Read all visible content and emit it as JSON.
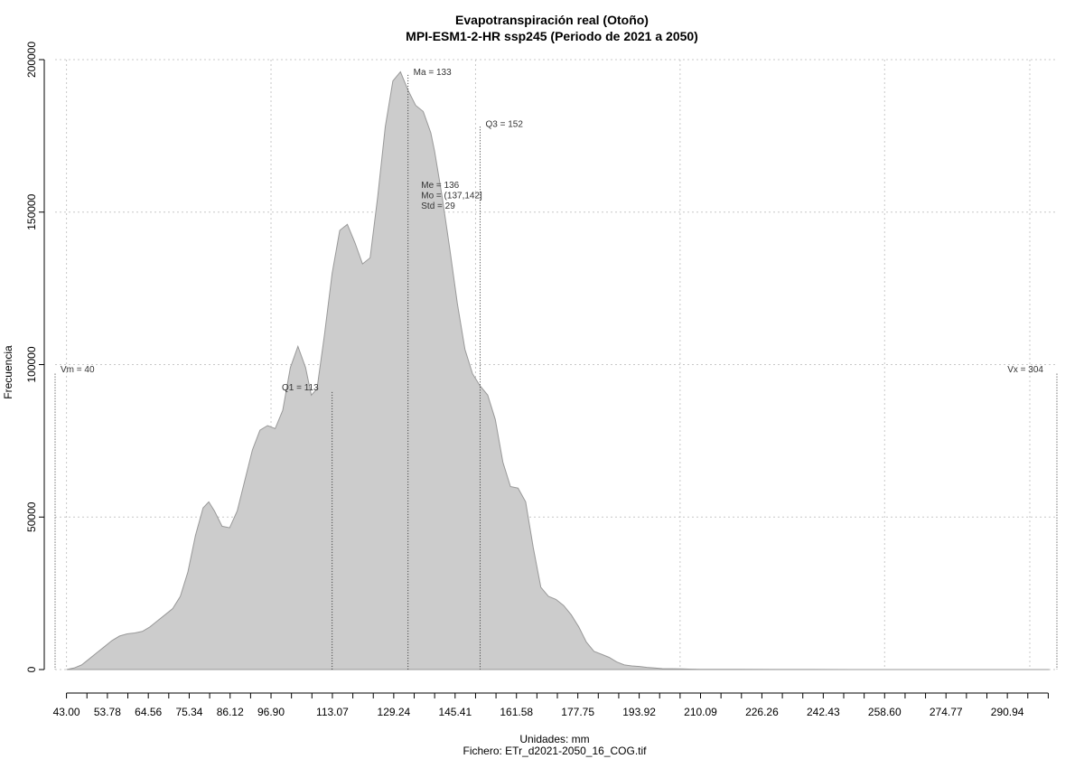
{
  "chart_data": {
    "type": "area",
    "title": "Evapotranspiración real (Otoño)",
    "subtitle": "MPI-ESM1-2-HR ssp245 (Periodo de 2021 a 2050)",
    "xlabel": "Unidades: mm",
    "caption": "Fichero: ETr_d2021-2050_16_COG.tif",
    "ylabel": "Frecuencia",
    "xlim": [
      40,
      304
    ],
    "ylim": [
      0,
      200000
    ],
    "grid": true,
    "x_ticks": [
      43.0,
      53.78,
      64.56,
      75.34,
      86.12,
      96.9,
      113.07,
      129.24,
      145.41,
      161.58,
      177.75,
      193.92,
      210.09,
      226.26,
      242.43,
      258.6,
      274.77,
      290.94
    ],
    "x_tick_labels": [
      "43.00",
      "53.78",
      "64.56",
      "75.34",
      "86.12",
      "96.90",
      "113.07",
      "129.24",
      "145.41",
      "161.58",
      "177.75",
      "193.92",
      "210.09",
      "226.26",
      "242.43",
      "258.60",
      "274.77",
      "290.94"
    ],
    "x_minor_ticks": [
      48.39,
      59.17,
      69.95,
      80.73,
      91.51,
      102.29,
      107.68,
      118.46,
      123.85,
      134.63,
      140.02,
      150.8,
      156.19,
      166.97,
      172.36,
      183.14,
      188.53,
      199.31,
      204.7,
      215.48,
      220.87,
      231.65,
      237.04,
      247.82,
      253.21,
      263.99,
      269.38,
      280.16,
      285.55,
      296.33,
      301.72
    ],
    "y_ticks": [
      0,
      50000,
      100000,
      150000,
      200000
    ],
    "y_tick_labels": [
      "0",
      "50000",
      "100000",
      "150000",
      "200000"
    ],
    "x_grid": [
      43.0,
      96.9,
      150.8,
      204.7,
      258.6
    ],
    "series": [
      {
        "x": [
          43,
          45,
          47,
          49,
          51,
          53,
          55,
          57,
          59,
          61,
          63,
          65,
          67,
          69,
          71,
          73,
          75,
          77,
          79,
          80.5,
          82,
          84,
          86,
          88,
          90,
          92,
          94,
          96,
          98,
          100,
          102,
          104,
          106,
          107.5,
          109,
          111,
          113,
          115,
          117,
          119,
          121,
          123,
          125,
          127,
          129,
          131,
          133,
          135,
          137,
          139,
          140,
          142,
          144,
          146,
          148,
          150,
          152,
          154,
          156,
          158,
          160,
          162,
          164,
          166,
          168,
          170,
          172,
          174,
          176,
          178,
          180,
          182,
          184,
          186,
          188,
          190,
          192,
          194,
          196,
          198,
          200,
          205,
          210,
          215,
          220,
          230,
          240,
          250,
          260,
          280,
          300,
          302
        ],
        "y": [
          0,
          500,
          1500,
          3500,
          5500,
          7500,
          9500,
          11000,
          11700,
          12000,
          12500,
          14000,
          16000,
          18000,
          20000,
          24000,
          32000,
          44000,
          53000,
          55000,
          52000,
          47000,
          46500,
          52000,
          62000,
          72000,
          78500,
          80000,
          79000,
          85000,
          99000,
          106000,
          99000,
          90000,
          92000,
          110000,
          130000,
          144000,
          146000,
          140000,
          133000,
          135000,
          155000,
          178000,
          193000,
          196000,
          190000,
          185000,
          183000,
          176000,
          170000,
          155000,
          138000,
          120000,
          105000,
          97000,
          93000,
          90000,
          82000,
          68000,
          60000,
          59500,
          55000,
          40000,
          27000,
          24000,
          23000,
          21000,
          18000,
          14000,
          9000,
          6000,
          5000,
          4000,
          2500,
          1500,
          1200,
          1000,
          700,
          500,
          300,
          200,
          100,
          100,
          50,
          30,
          20,
          10,
          10,
          0,
          0,
          0
        ],
        "color": "#cccccc",
        "line_color": "#999999"
      }
    ],
    "markers": [
      {
        "label": "Vm = 40",
        "x": 40,
        "y_top": 97000,
        "label_y": 97500,
        "anchor": "start"
      },
      {
        "label": "Q1 = 113",
        "x": 113,
        "y_top": 91000,
        "label_y": 91500,
        "anchor": "end"
      },
      {
        "label": "Ma = 133",
        "x": 133,
        "y_top": 195000,
        "label_y": 195000,
        "anchor": "start"
      },
      {
        "label": "Q3 = 152",
        "x": 152,
        "y_top": 178000,
        "label_y": 178000,
        "anchor": "start"
      }
    ],
    "stats_text": [
      "Me = 136",
      "Mo = (137,142]",
      "Std = 29"
    ],
    "right_marker": {
      "label": "Vx = 304",
      "x": 304,
      "y_top": 97000,
      "label_y": 97500
    }
  }
}
